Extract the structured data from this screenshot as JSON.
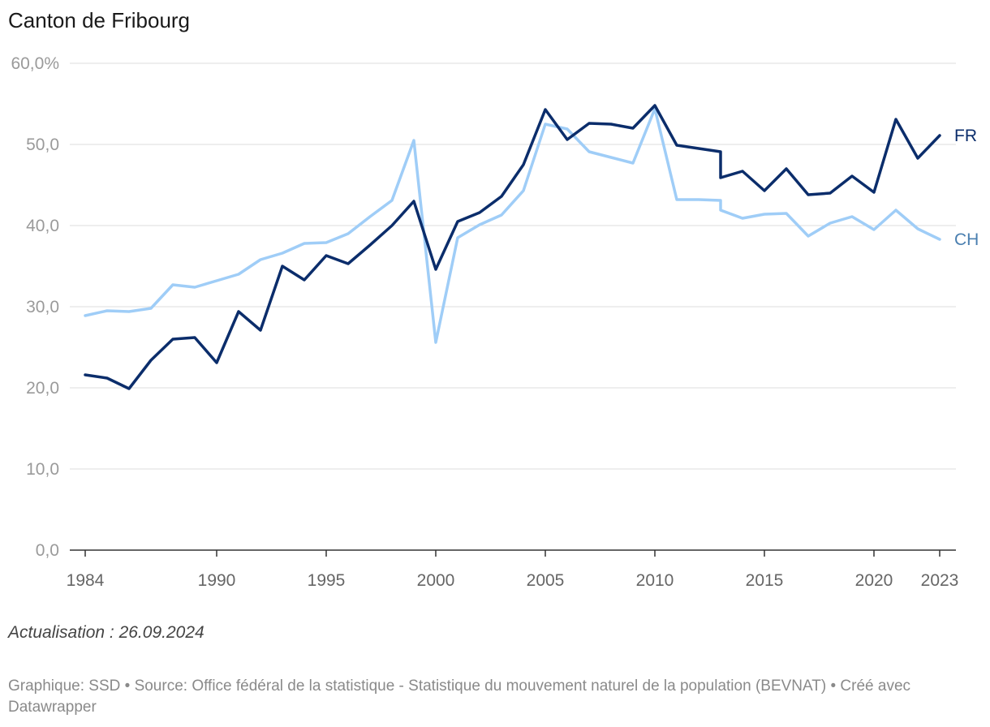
{
  "title": "Canton de Fribourg",
  "note": "Actualisation : 26.09.2024",
  "footer": "Graphique: SSD • Source: Office fédéral de la statistique - Statistique du mouvement naturel de la population (BEVNAT) • Créé avec Datawrapper",
  "chart_data": {
    "type": "line",
    "title": "Canton de Fribourg",
    "xlabel": "",
    "ylabel": "",
    "ylim": [
      0,
      60
    ],
    "xlim": [
      1984,
      2023
    ],
    "grid": true,
    "yticks": [
      {
        "value": 0,
        "label": "0,0"
      },
      {
        "value": 10,
        "label": "10,0"
      },
      {
        "value": 20,
        "label": "20,0"
      },
      {
        "value": 30,
        "label": "30,0"
      },
      {
        "value": 40,
        "label": "40,0"
      },
      {
        "value": 50,
        "label": "50,0"
      },
      {
        "value": 60,
        "label": "60,0%"
      }
    ],
    "xticks": [
      {
        "value": 1984,
        "label": "1984"
      },
      {
        "value": 1990,
        "label": "1990"
      },
      {
        "value": 1995,
        "label": "1995"
      },
      {
        "value": 2000,
        "label": "2000"
      },
      {
        "value": 2005,
        "label": "2005"
      },
      {
        "value": 2010,
        "label": "2010"
      },
      {
        "value": 2015,
        "label": "2015"
      },
      {
        "value": 2020,
        "label": "2020"
      },
      {
        "value": 2023,
        "label": "2023"
      }
    ],
    "series": [
      {
        "name": "CH",
        "color": "#9fcdf7",
        "label_color": "#4a7fb0",
        "points": [
          [
            1984,
            28.9
          ],
          [
            1985,
            29.5
          ],
          [
            1986,
            29.4
          ],
          [
            1987,
            29.8
          ],
          [
            1988,
            32.7
          ],
          [
            1989,
            32.4
          ],
          [
            1990,
            33.2
          ],
          [
            1991,
            34.0
          ],
          [
            1992,
            35.8
          ],
          [
            1993,
            36.6
          ],
          [
            1994,
            37.8
          ],
          [
            1995,
            37.9
          ],
          [
            1996,
            39.0
          ],
          [
            1997,
            41.1
          ],
          [
            1998,
            43.1
          ],
          [
            1999,
            50.5
          ],
          [
            2000,
            25.6
          ],
          [
            2001,
            38.5
          ],
          [
            2002,
            40.1
          ],
          [
            2003,
            41.3
          ],
          [
            2004,
            44.3
          ],
          [
            2005,
            52.5
          ],
          [
            2006,
            51.9
          ],
          [
            2007,
            49.1
          ],
          [
            2008,
            48.4
          ],
          [
            2009,
            47.7
          ],
          [
            2010,
            54.4
          ],
          [
            2011,
            43.2
          ],
          [
            2012,
            43.2
          ],
          [
            2013,
            43.1
          ],
          [
            2013,
            41.9
          ],
          [
            2014,
            40.9
          ],
          [
            2015,
            41.4
          ],
          [
            2016,
            41.5
          ],
          [
            2017,
            38.7
          ],
          [
            2018,
            40.3
          ],
          [
            2019,
            41.1
          ],
          [
            2020,
            39.5
          ],
          [
            2021,
            41.9
          ],
          [
            2022,
            39.6
          ],
          [
            2023,
            38.3
          ]
        ]
      },
      {
        "name": "FR",
        "color": "#0b2d6b",
        "label_color": "#0b2d6b",
        "points": [
          [
            1984,
            21.6
          ],
          [
            1985,
            21.2
          ],
          [
            1986,
            19.9
          ],
          [
            1987,
            23.4
          ],
          [
            1988,
            26.0
          ],
          [
            1989,
            26.2
          ],
          [
            1990,
            23.1
          ],
          [
            1991,
            29.4
          ],
          [
            1992,
            27.1
          ],
          [
            1993,
            35.0
          ],
          [
            1994,
            33.3
          ],
          [
            1995,
            36.3
          ],
          [
            1996,
            35.3
          ],
          [
            1997,
            37.6
          ],
          [
            1998,
            40.0
          ],
          [
            1999,
            43.0
          ],
          [
            2000,
            34.6
          ],
          [
            2001,
            40.5
          ],
          [
            2002,
            41.6
          ],
          [
            2003,
            43.6
          ],
          [
            2004,
            47.5
          ],
          [
            2005,
            54.3
          ],
          [
            2006,
            50.6
          ],
          [
            2007,
            52.6
          ],
          [
            2008,
            52.5
          ],
          [
            2009,
            52.0
          ],
          [
            2010,
            54.8
          ],
          [
            2011,
            49.9
          ],
          [
            2012,
            49.5
          ],
          [
            2013,
            49.1
          ],
          [
            2013,
            45.9
          ],
          [
            2014,
            46.7
          ],
          [
            2015,
            44.3
          ],
          [
            2016,
            47.0
          ],
          [
            2017,
            43.8
          ],
          [
            2018,
            44.0
          ],
          [
            2019,
            46.1
          ],
          [
            2020,
            44.1
          ],
          [
            2021,
            53.1
          ],
          [
            2022,
            48.3
          ],
          [
            2023,
            51.1
          ]
        ]
      }
    ]
  }
}
